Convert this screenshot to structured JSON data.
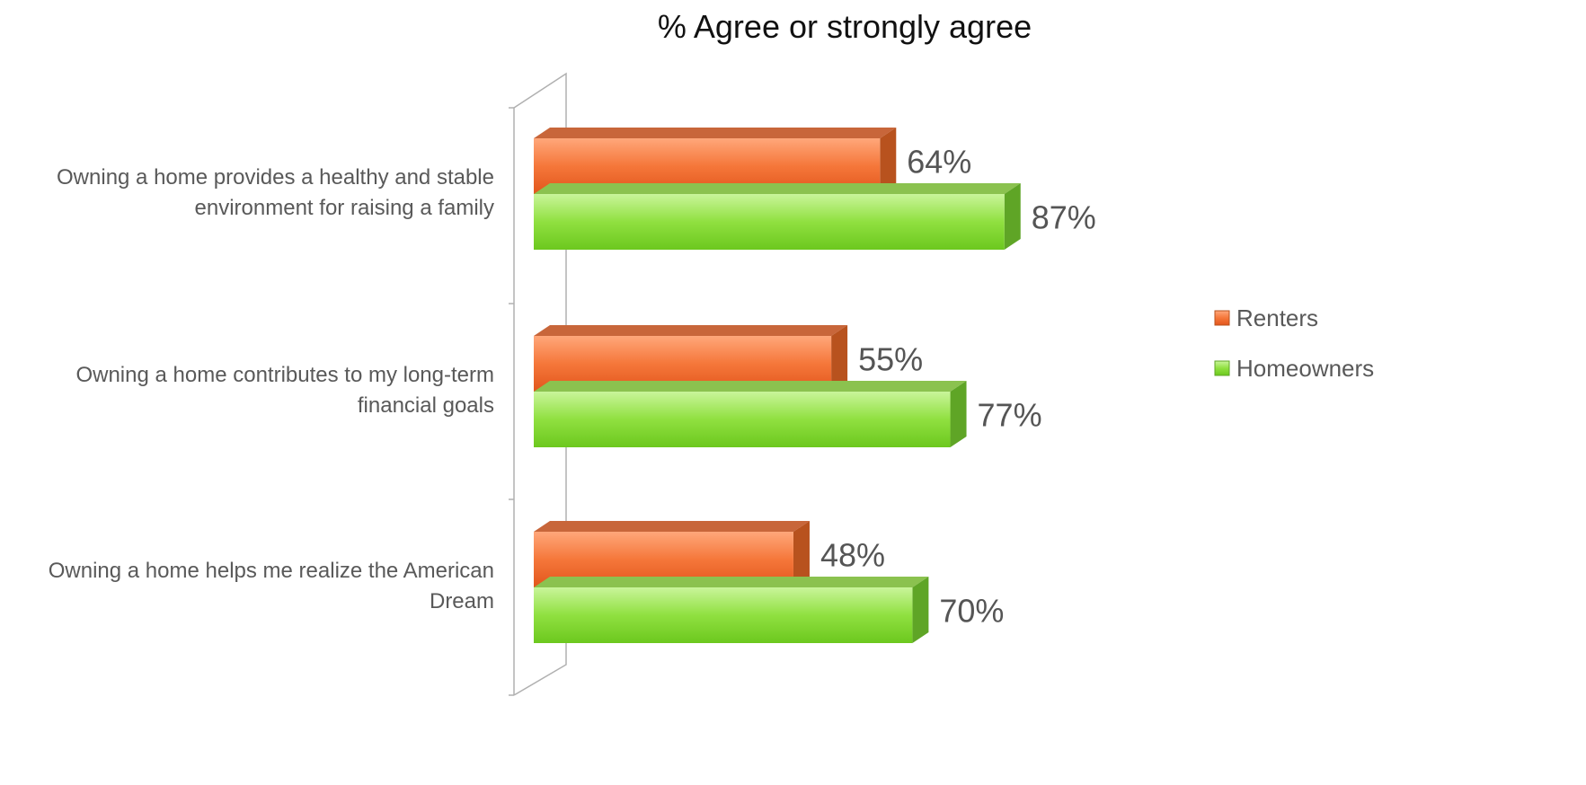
{
  "chart_data": {
    "type": "bar",
    "orientation": "horizontal",
    "title": "% Agree or strongly agree",
    "categories": [
      [
        "Owning a home provides a healthy and stable",
        "environment for raising a family"
      ],
      [
        "Owning a home contributes to my long-term",
        "financial goals"
      ],
      [
        "Owning a home helps me realize the American",
        "Dream"
      ]
    ],
    "series": [
      {
        "name": "Renters",
        "values": [
          64,
          55,
          48
        ],
        "labels": [
          "64%",
          "55%",
          "48%"
        ],
        "color": "#F26B2A"
      },
      {
        "name": "Homeowners",
        "values": [
          87,
          77,
          70
        ],
        "labels": [
          "87%",
          "77%",
          "70%"
        ],
        "color": "#7ED321"
      }
    ],
    "xlim": [
      0,
      100
    ],
    "grid": false,
    "legend_position": "right"
  }
}
